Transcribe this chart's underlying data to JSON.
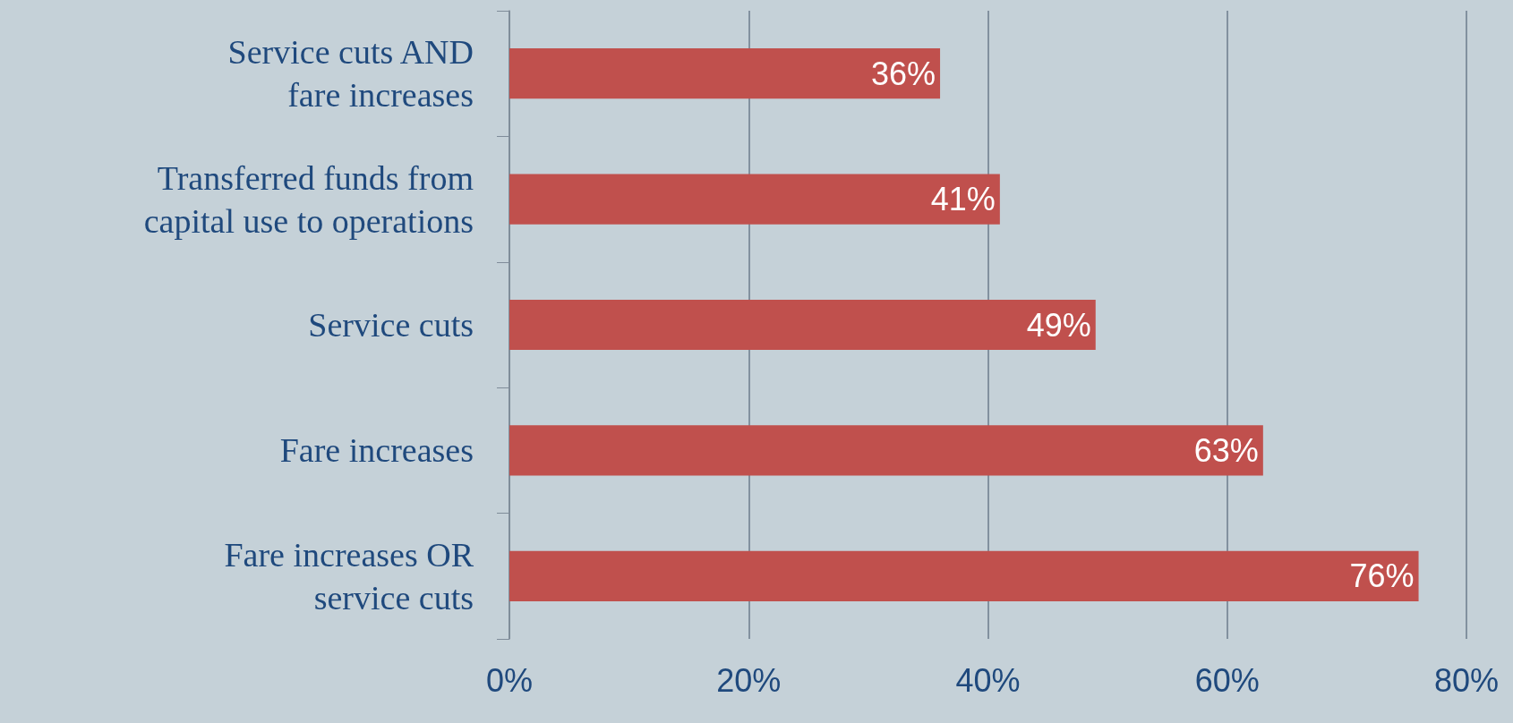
{
  "chart_data": {
    "type": "bar",
    "orientation": "horizontal",
    "categories": [
      "Service cuts AND\nfare increases",
      "Transferred funds from\ncapital use to operations",
      "Service cuts",
      "Fare increases",
      "Fare increases OR\nservice cuts"
    ],
    "values": [
      36,
      41,
      49,
      63,
      76
    ],
    "value_labels": [
      "36%",
      "41%",
      "49%",
      "63%",
      "76%"
    ],
    "color": "#c0504d",
    "xlim": [
      0,
      80
    ],
    "xticks": [
      {
        "value": 0,
        "label": "0%"
      },
      {
        "value": 20,
        "label": "20%"
      },
      {
        "value": 40,
        "label": "40%"
      },
      {
        "value": 60,
        "label": "60%"
      },
      {
        "value": 80,
        "label": "80%"
      }
    ],
    "grid": "x"
  }
}
